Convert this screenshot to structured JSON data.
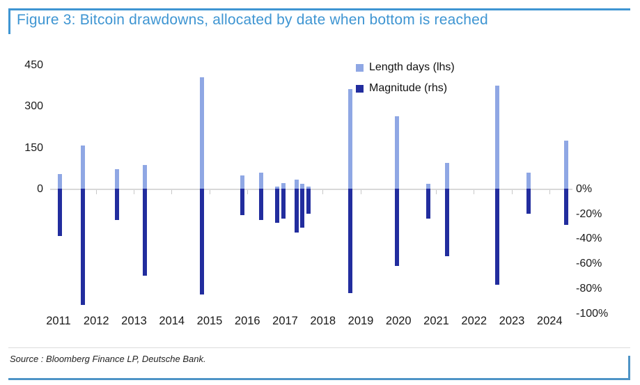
{
  "figure": {
    "title": "Figure 3: Bitcoin drawdowns, allocated by date when bottom is reached",
    "source": "Source : Bloomberg Finance LP, Deutsche Bank."
  },
  "colors": {
    "accent_title": "#3E95D2",
    "frame_border": "#3E95D2",
    "bottom_rule": "#4E94C6",
    "length_bar": "#8FA7E4",
    "magnitude_bar": "#222D9E"
  },
  "chart_data": {
    "type": "bar",
    "title": "Figure 3: Bitcoin drawdowns, allocated by date when bottom is reached",
    "grid": false,
    "legend_position": "top-right-inside",
    "x_axis": {
      "tick_labels": [
        "2011",
        "2012",
        "2013",
        "2014",
        "2015",
        "2016",
        "2017",
        "2018",
        "2019",
        "2020",
        "2021",
        "2022",
        "2023",
        "2024"
      ]
    },
    "left_axis": {
      "series": "Length days (lhs)",
      "tick_labels": [
        "450",
        "300",
        "150",
        "0"
      ],
      "tick_values": [
        450,
        300,
        150,
        0
      ],
      "range": [
        0,
        450
      ]
    },
    "right_axis": {
      "series": "Magnitude (rhs)",
      "tick_labels": [
        "0%",
        "-20%",
        "-40%",
        "-60%",
        "-80%",
        "-100%"
      ],
      "tick_values": [
        0,
        -20,
        -40,
        -60,
        -80,
        -100
      ],
      "range": [
        0,
        -100
      ]
    },
    "series": [
      {
        "name": "Length days (lhs)",
        "axis": "lhs",
        "field": "length_days",
        "color": "#8FA7E4"
      },
      {
        "name": "Magnitude (rhs)",
        "axis": "rhs",
        "field": "magnitude_pct",
        "color": "#222D9E"
      }
    ],
    "points": [
      {
        "x": 2011.04,
        "length_days": 53,
        "magnitude_pct": -38
      },
      {
        "x": 2011.64,
        "length_days": 158,
        "magnitude_pct": -93
      },
      {
        "x": 2012.55,
        "length_days": 71,
        "magnitude_pct": -25
      },
      {
        "x": 2013.29,
        "length_days": 88,
        "magnitude_pct": -70
      },
      {
        "x": 2014.8,
        "length_days": 405,
        "magnitude_pct": -85
      },
      {
        "x": 2015.87,
        "length_days": 50,
        "magnitude_pct": -21
      },
      {
        "x": 2016.37,
        "length_days": 59,
        "magnitude_pct": -25
      },
      {
        "x": 2016.78,
        "length_days": 9,
        "magnitude_pct": -27
      },
      {
        "x": 2016.96,
        "length_days": 21,
        "magnitude_pct": -24
      },
      {
        "x": 2017.3,
        "length_days": 35,
        "magnitude_pct": -35
      },
      {
        "x": 2017.45,
        "length_days": 18,
        "magnitude_pct": -31
      },
      {
        "x": 2017.61,
        "length_days": 10,
        "magnitude_pct": -20
      },
      {
        "x": 2018.72,
        "length_days": 363,
        "magnitude_pct": -84
      },
      {
        "x": 2019.96,
        "length_days": 264,
        "magnitude_pct": -62
      },
      {
        "x": 2020.79,
        "length_days": 18,
        "magnitude_pct": -24
      },
      {
        "x": 2021.29,
        "length_days": 94,
        "magnitude_pct": -54
      },
      {
        "x": 2022.61,
        "length_days": 375,
        "magnitude_pct": -77
      },
      {
        "x": 2023.45,
        "length_days": 59,
        "magnitude_pct": -20
      },
      {
        "x": 2024.43,
        "length_days": 176,
        "magnitude_pct": -29
      }
    ]
  }
}
